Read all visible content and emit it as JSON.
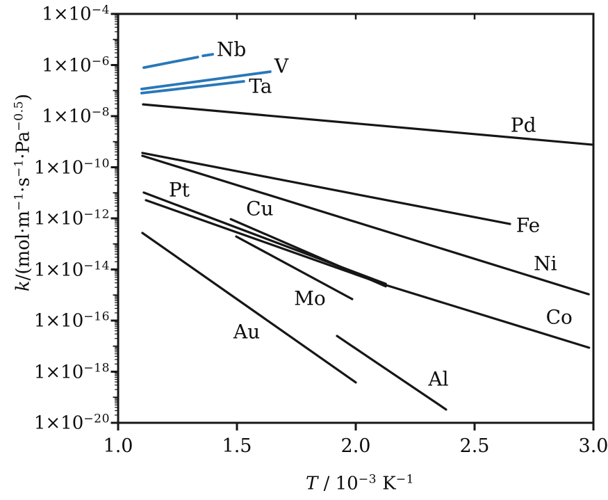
{
  "chart_data": {
    "type": "line",
    "title": "",
    "x_axis": {
      "title_parts": [
        {
          "t": "T",
          "i": 1
        },
        {
          "t": " / 10"
        },
        {
          "t": "−3",
          "s": 1
        },
        {
          "t": " K"
        },
        {
          "t": "−1",
          "s": 1
        }
      ],
      "xlim": [
        1.0,
        3.0
      ],
      "ticks": [
        {
          "label": "1.0",
          "value": 1.0
        },
        {
          "label": "1.5",
          "value": 1.5
        },
        {
          "label": "2.0",
          "value": 2.0
        },
        {
          "label": "2.5",
          "value": 2.5
        },
        {
          "label": "3.0",
          "value": 3.0
        }
      ],
      "top_ticks": [
        1.5,
        2.0,
        2.5
      ]
    },
    "y_axis": {
      "title_parts": [
        {
          "t": "k",
          "i": 1
        },
        {
          "t": "/(mol·m"
        },
        {
          "t": "−1",
          "s": 1
        },
        {
          "t": "·s"
        },
        {
          "t": "−1",
          "s": 1
        },
        {
          "t": "·Pa"
        },
        {
          "t": "−0.5",
          "s": 1
        },
        {
          "t": ")"
        }
      ],
      "scale": "log10",
      "ylog_range": [
        -20,
        -4
      ],
      "ticks": [
        {
          "mantissa": "1×10",
          "exp": "−4",
          "value": -4
        },
        {
          "mantissa": "1×10",
          "exp": "−6",
          "value": -6
        },
        {
          "mantissa": "1×10",
          "exp": "−8",
          "value": -8
        },
        {
          "mantissa": "1×10",
          "exp": "−10",
          "value": -10
        },
        {
          "mantissa": "1×10",
          "exp": "−12",
          "value": -12
        },
        {
          "mantissa": "1×10",
          "exp": "−14",
          "value": -14
        },
        {
          "mantissa": "1×10",
          "exp": "−16",
          "value": -16
        },
        {
          "mantissa": "1×10",
          "exp": "−18",
          "value": -18
        },
        {
          "mantissa": "1×10",
          "exp": "−20",
          "value": -20
        }
      ]
    },
    "grid": false,
    "legend": "inline-labels",
    "colors": {
      "refractory_bcc_metals": "#2878b8",
      "other_metals": "#161616"
    },
    "series": [
      {
        "name": "Nb",
        "color": "#2878b8",
        "width": 3.8,
        "segments": [
          [
            [
              1.108,
              -6.1
            ],
            [
              1.335,
              -5.69
            ]
          ],
          [
            [
              1.357,
              -5.64
            ],
            [
              1.398,
              -5.58
            ]
          ]
        ],
        "label_at": [
          1.477,
          -5.39
        ]
      },
      {
        "name": "V",
        "color": "#2878b8",
        "width": 3.8,
        "segments": [
          [
            [
              1.099,
              -6.94
            ],
            [
              1.64,
              -6.26
            ]
          ]
        ],
        "label_at": [
          1.687,
          -6.04
        ]
      },
      {
        "name": "Ta",
        "color": "#2878b8",
        "width": 3.8,
        "segments": [
          [
            [
              1.099,
              -7.1
            ],
            [
              1.529,
              -6.64
            ]
          ]
        ],
        "label_at": [
          1.599,
          -6.83
        ]
      },
      {
        "name": "Pd",
        "color": "#161616",
        "width": 3.2,
        "segments": [
          [
            [
              1.105,
              -7.54
            ],
            [
              3.0,
              -9.12
            ]
          ]
        ],
        "label_at": [
          2.705,
          -8.35
        ]
      },
      {
        "name": "Fe",
        "color": "#161616",
        "width": 3.2,
        "segments": [
          [
            [
              1.102,
              -9.44
            ],
            [
              2.649,
              -12.22
            ]
          ]
        ],
        "label_at": [
          2.725,
          -12.27
        ]
      },
      {
        "name": "Ni",
        "color": "#161616",
        "width": 3.2,
        "segments": [
          [
            [
              1.102,
              -9.55
            ],
            [
              2.98,
              -14.97
            ]
          ]
        ],
        "label_at": [
          2.798,
          -13.77
        ]
      },
      {
        "name": "Pt",
        "color": "#161616",
        "width": 3.2,
        "segments": [
          [
            [
              1.108,
              -10.99
            ],
            [
              2.126,
              -14.56
            ]
          ]
        ],
        "label_at": [
          1.257,
          -10.88
        ]
      },
      {
        "name": "Co",
        "color": "#161616",
        "width": 3.2,
        "segments": [
          [
            [
              1.117,
              -11.29
            ],
            [
              2.126,
              -14.61
            ],
            [
              2.982,
              -17.06
            ]
          ]
        ],
        "label_at": [
          2.856,
          -15.86
        ]
      },
      {
        "name": "Cu",
        "color": "#161616",
        "width": 3.2,
        "segments": [
          [
            [
              1.474,
              -12.03
            ],
            [
              2.126,
              -14.66
            ]
          ]
        ],
        "label_at": [
          1.596,
          -11.62
        ]
      },
      {
        "name": "Mo",
        "color": "#161616",
        "width": 3.2,
        "segments": [
          [
            [
              1.497,
              -12.71
            ],
            [
              1.985,
              -15.16
            ]
          ]
        ],
        "label_at": [
          1.807,
          -15.13
        ]
      },
      {
        "name": "Au",
        "color": "#161616",
        "width": 3.2,
        "segments": [
          [
            [
              1.102,
              -12.57
            ],
            [
              2.0,
              -18.42
            ]
          ]
        ],
        "label_at": [
          1.541,
          -16.43
        ]
      },
      {
        "name": "Al",
        "color": "#161616",
        "width": 3.2,
        "segments": [
          [
            [
              1.921,
              -16.6
            ],
            [
              2.38,
              -19.48
            ]
          ]
        ],
        "label_at": [
          2.348,
          -18.29
        ]
      }
    ]
  }
}
